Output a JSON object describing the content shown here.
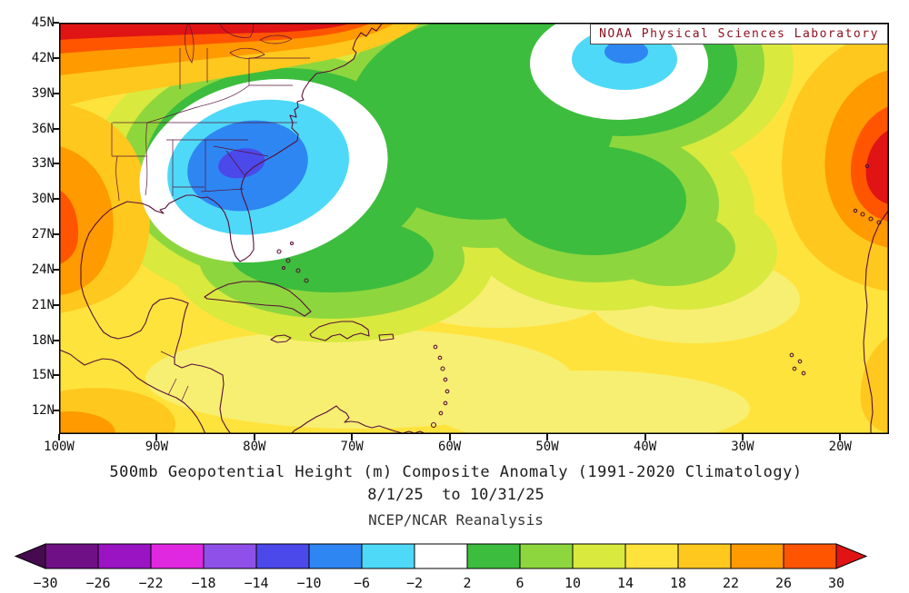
{
  "header": {
    "attribution": "NOAA Physical Sciences Laboratory"
  },
  "titles": {
    "line1": "500mb Geopotential Height (m) Composite Anomaly (1991-2020 Climatology)",
    "line2": "8/1/25  to 10/31/25",
    "line3": "NCEP/NCAR Reanalysis"
  },
  "axes": {
    "lat_ticks": [
      "45N",
      "42N",
      "39N",
      "36N",
      "33N",
      "30N",
      "27N",
      "24N",
      "21N",
      "18N",
      "15N",
      "12N"
    ],
    "lon_ticks": [
      "100W",
      "90W",
      "80W",
      "70W",
      "60W",
      "50W",
      "40W",
      "30W",
      "20W"
    ]
  },
  "colorbar": {
    "labels": [
      "−30",
      "−26",
      "−22",
      "−18",
      "−14",
      "−10",
      "−6",
      "−2",
      "2",
      "6",
      "10",
      "14",
      "18",
      "22",
      "26",
      "30"
    ],
    "colors": [
      "#460a4e",
      "#701086",
      "#9a14c4",
      "#e128e1",
      "#8f4fe9",
      "#4b49ea",
      "#2e86f2",
      "#4fd9f8",
      "#ffffff",
      "#3dbd3d",
      "#8ed63e",
      "#d9e93e",
      "#ffe33d",
      "#ffc81e",
      "#ff9a00",
      "#ff5500",
      "#e01414"
    ]
  },
  "chart_data": {
    "type": "heatmap",
    "title": "500mb Geopotential Height (m) Composite Anomaly (1991-2020 Climatology)",
    "subtitle": "8/1/25 to 10/31/25",
    "dataset": "NCEP/NCAR Reanalysis",
    "attribution": "NOAA Physical Sciences Laboratory",
    "units": "m",
    "projection": "cylindrical lat-lon, North Atlantic / Caribbean sector",
    "lon_range_deg_west": [
      100,
      15
    ],
    "lat_range_deg_north": [
      10,
      45
    ],
    "x_tick_labels": [
      "100W",
      "90W",
      "80W",
      "70W",
      "60W",
      "50W",
      "40W",
      "30W",
      "20W"
    ],
    "y_tick_labels": [
      "45N",
      "42N",
      "39N",
      "36N",
      "33N",
      "30N",
      "27N",
      "24N",
      "21N",
      "18N",
      "15N",
      "12N"
    ],
    "contour_interval": 4,
    "contour_levels": [
      -30,
      -26,
      -22,
      -18,
      -14,
      -10,
      -6,
      -2,
      2,
      6,
      10,
      14,
      18,
      22,
      26,
      30
    ],
    "colorbar_colors": [
      "#460a4e",
      "#701086",
      "#9a14c4",
      "#e128e1",
      "#8f4fe9",
      "#4b49ea",
      "#2e86f2",
      "#4fd9f8",
      "#ffffff",
      "#3dbd3d",
      "#8ed63e",
      "#d9e93e",
      "#ffe33d",
      "#ffc81e",
      "#ff9a00",
      "#ff5500",
      "#e01414"
    ],
    "legend_position": "bottom",
    "grid": false,
    "features": [
      {
        "label": "negative anomaly center over southeastern US",
        "lon_w": 82,
        "lat_n": 33,
        "min_value_m": -12
      },
      {
        "label": "negative anomaly center in central North Atlantic",
        "lon_w": 41,
        "lat_n": 43,
        "min_value_m": -8
      },
      {
        "label": "strong positive anomaly band along northern edge (40-45N, west of 60W)",
        "lat_n": 45,
        "max_value_m": 30
      },
      {
        "label": "positive anomaly center near northwest Africa / Canary Islands",
        "lon_w": 17,
        "lat_n": 32,
        "max_value_m": 30
      },
      {
        "label": "positive anomaly over Mexico at western edge",
        "lon_w": 99,
        "lat_n": 26,
        "max_value_m": 26
      },
      {
        "label": "broad weak positive background over tropical Atlantic and Caribbean",
        "typical_value_m": 12
      }
    ]
  }
}
